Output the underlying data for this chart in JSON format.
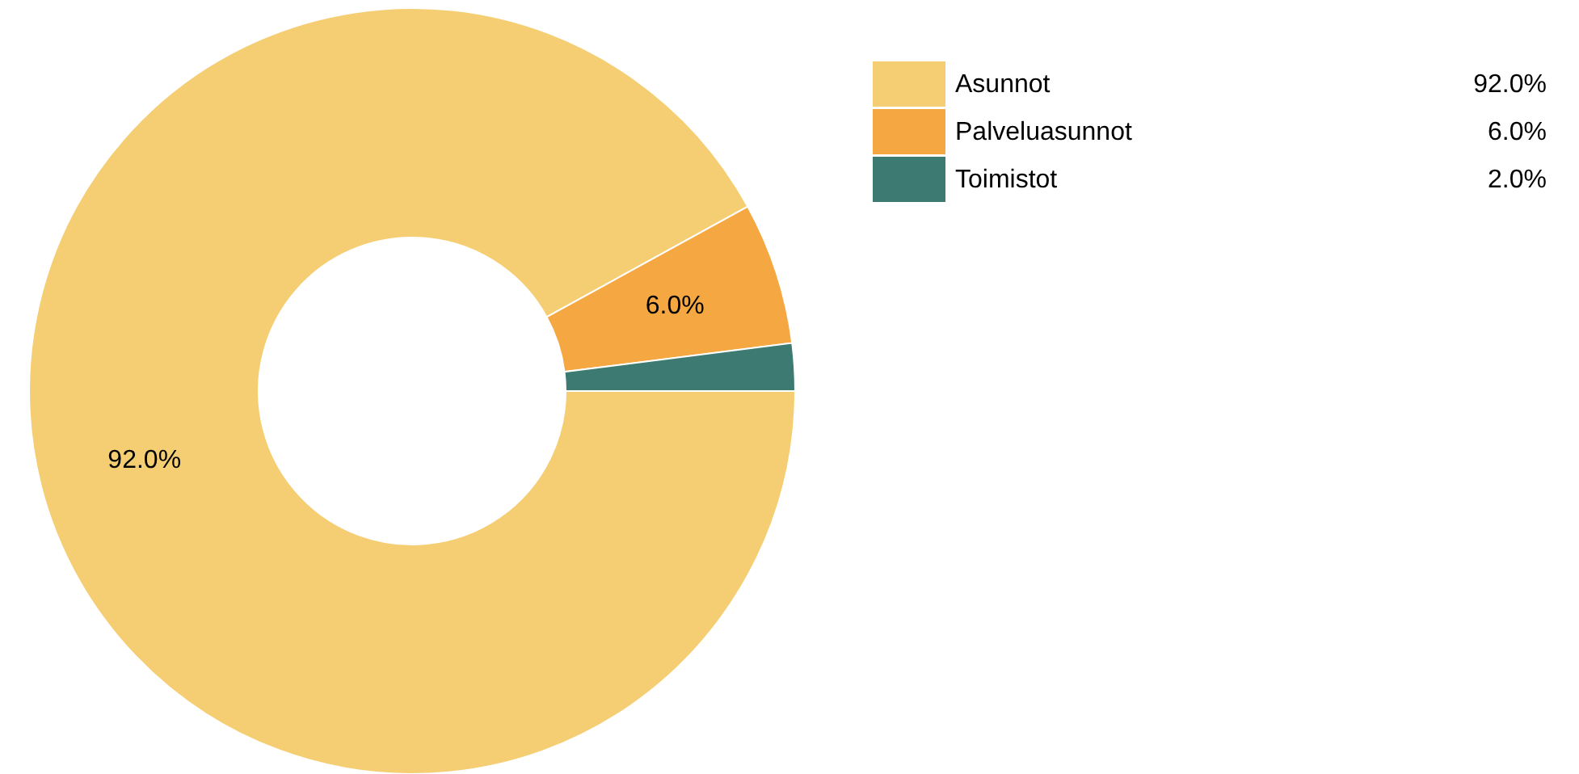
{
  "chart_data": {
    "type": "donut",
    "categories": [
      "Asunnot",
      "Palveluasunnot",
      "Toimistot"
    ],
    "values": [
      92.0,
      6.0,
      2.0
    ],
    "colors": [
      "#f5ce73",
      "#f5a742",
      "#3c7a72"
    ],
    "value_labels": [
      "92.0%",
      "6.0%",
      null
    ],
    "annotations": [
      "92.0%",
      "6.0%",
      "2.0%"
    ],
    "legend": "top right"
  }
}
